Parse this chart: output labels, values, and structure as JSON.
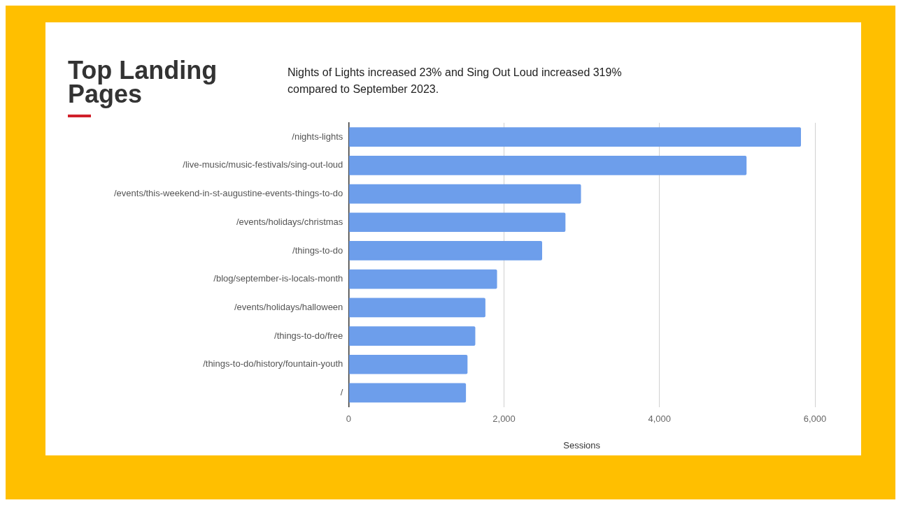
{
  "chart_data": {
    "type": "bar",
    "title": "Top Landing Pages",
    "subtitle": "Nights of Lights increased 23% and Sing Out Loud increased 319% compared to September 2023.",
    "xlabel": "Sessions",
    "orientation": "horizontal",
    "categories": [
      "/nights-lights",
      "/live-music/music-festivals/sing-out-loud",
      "/events/this-weekend-in-st-augustine-events-things-to-do",
      "/events/holidays/christmas",
      "/things-to-do",
      "/blog/september-is-locals-month",
      "/events/holidays/halloween",
      "/things-to-do/free",
      "/things-to-do/history/fountain-youth",
      "/"
    ],
    "values": [
      5820,
      5120,
      2990,
      2790,
      2490,
      1910,
      1760,
      1630,
      1530,
      1510
    ],
    "color": "#6d9eeb",
    "xlim": [
      0,
      6000
    ],
    "xticks": [
      {
        "value": 0,
        "label": "0"
      },
      {
        "value": 2000,
        "label": "2,000"
      },
      {
        "value": 4000,
        "label": "4,000"
      },
      {
        "value": 6000,
        "label": "6,000"
      }
    ],
    "grid": "x",
    "legend": false
  }
}
